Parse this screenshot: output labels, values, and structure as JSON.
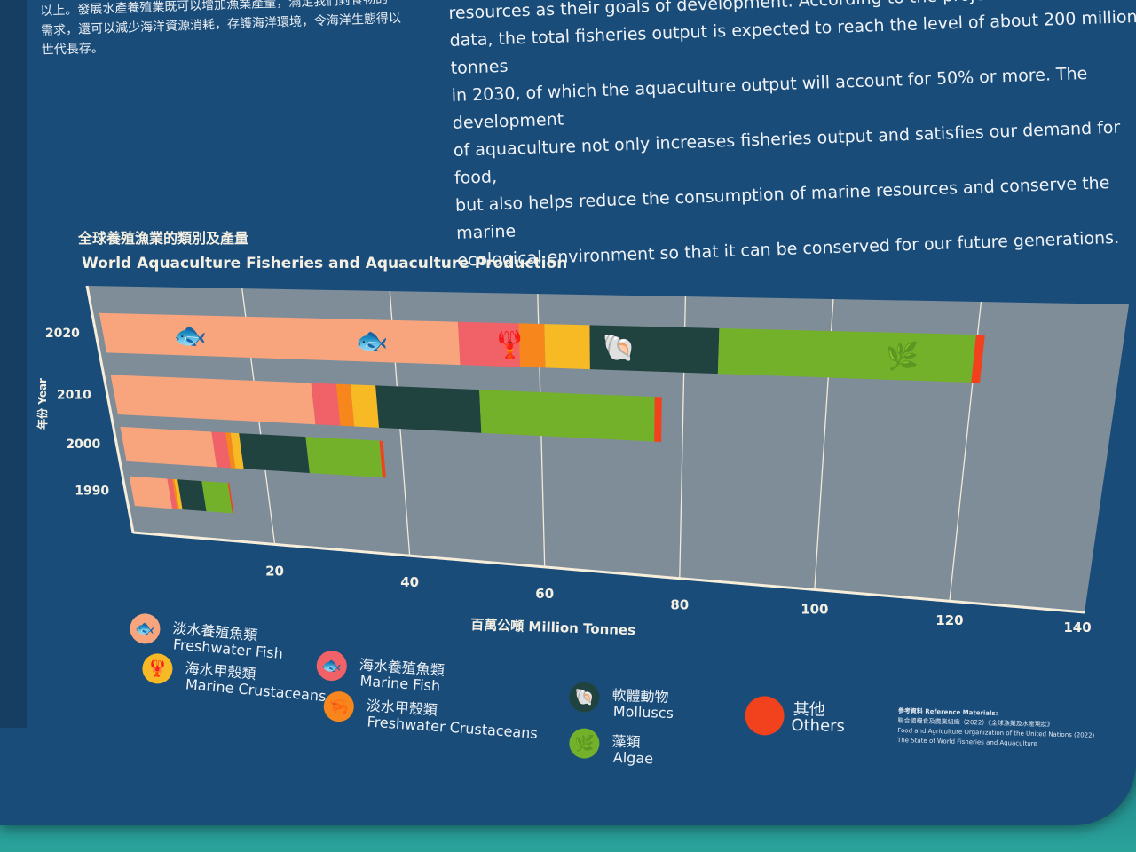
{
  "text": {
    "zh_paragraph": "以上。發展水產養殖業既可以增加漁業產量，滿足我們對食物的\n需求，還可以減少海洋資源消耗，存護海洋環境，令海洋生態得以\n世代長存。",
    "en_paragraph": "resources as their goals of development. According to the projection\ndata, the total fisheries output is expected to reach the level of about 200 million tonnes\nin 2030, of which the aquaculture output will account for 50% or more. The development\nof aquaculture not only increases fisheries output and satisfies our demand for food,\nbut also helps reduce the consumption of marine resources and conserve the marine\necological environment so that it can be conserved for our future generations."
  },
  "chart_data": {
    "type": "bar",
    "orientation": "horizontal",
    "stacked": true,
    "title_zh": "全球養殖漁業的類別及產量",
    "title": "World Aquaculture Fisheries and Aquaculture Production",
    "ylabel": "年份 Year",
    "xlabel": "百萬公噸 Million Tonnes",
    "xlim": [
      0,
      140
    ],
    "xticks": [
      20,
      40,
      60,
      80,
      100,
      120,
      140
    ],
    "categories": [
      "2020",
      "2010",
      "2000",
      "1990"
    ],
    "series": [
      {
        "name": "Freshwater Fish",
        "name_zh": "淡水養殖魚類",
        "color": "#f8a57e",
        "values": [
          49,
          28,
          13,
          5.5
        ]
      },
      {
        "name": "Marine Fish",
        "name_zh": "海水養殖魚類",
        "color": "#f06268",
        "values": [
          8.3,
          3.5,
          2,
          0.7
        ]
      },
      {
        "name": "Freshwater Crustaceans",
        "name_zh": "淡水甲殼類",
        "color": "#f7861c",
        "values": [
          3.5,
          2,
          0.7,
          0.3
        ]
      },
      {
        "name": "Marine Crustaceans",
        "name_zh": "海水甲殼類",
        "color": "#f7ba25",
        "values": [
          6.2,
          3.5,
          1.2,
          0.5
        ]
      },
      {
        "name": "Molluscs",
        "name_zh": "軟體動物",
        "color": "#20433f",
        "values": [
          17.7,
          14.5,
          9.5,
          3.5
        ]
      },
      {
        "name": "Algae",
        "name_zh": "藻類",
        "color": "#74b12b",
        "values": [
          35.1,
          24.5,
          10.5,
          3.8
        ]
      },
      {
        "name": "Others",
        "name_zh": "其他",
        "color": "#f2421d",
        "values": [
          1.2,
          1,
          0.5,
          0.2
        ]
      }
    ]
  },
  "legend": [
    {
      "zh": "淡水養殖魚類",
      "en": "Freshwater Fish",
      "icon": "freshwater-fish-icon",
      "color": "#f8a57e",
      "glyph": "🐟"
    },
    {
      "zh": "海水甲殼類",
      "en": "Marine Crustaceans",
      "icon": "lobster-icon",
      "color": "#f7ba25",
      "glyph": "🦞"
    },
    {
      "zh": "海水養殖魚類",
      "en": "Marine Fish",
      "icon": "marine-fish-icon",
      "color": "#f06268",
      "glyph": "🐟"
    },
    {
      "zh": "淡水甲殼類",
      "en": "Freshwater Crustaceans",
      "icon": "shrimp-icon",
      "color": "#f7861c",
      "glyph": "🦐"
    },
    {
      "zh": "軟體動物",
      "en": "Molluscs",
      "icon": "shell-icon",
      "color": "#20433f",
      "glyph": "🐚"
    },
    {
      "zh": "藻類",
      "en": "Algae",
      "icon": "seaweed-icon",
      "color": "#74b12b",
      "glyph": "🌿"
    },
    {
      "zh": "其他",
      "en": "Others",
      "icon": "others-dot-icon",
      "color": "#f2421d",
      "glyph": ""
    }
  ],
  "references": {
    "title": "參考資料 Reference Materials:",
    "line1": "聯合國糧食及農業組織（2022）《全球漁業及水產現狀》",
    "line2": "Food and Agriculture Organization of the United Nations (2022)",
    "line3": "The State of World Fisheries and Aquaculture"
  }
}
